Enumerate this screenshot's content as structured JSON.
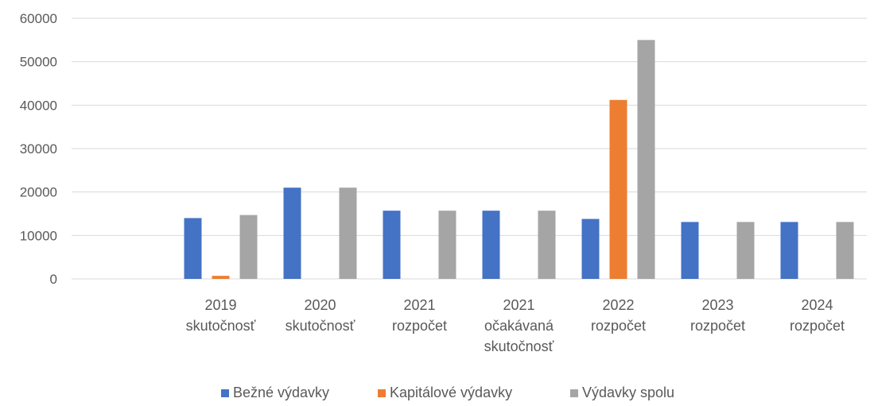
{
  "chart_data": {
    "type": "bar",
    "title": "",
    "xlabel": "",
    "ylabel": "",
    "ylim": [
      0,
      60000
    ],
    "yticks": [
      0,
      10000,
      20000,
      30000,
      40000,
      50000,
      60000
    ],
    "ytick_labels": [
      "0",
      "10000",
      "20000",
      "30000",
      "40000",
      "50000",
      "60000"
    ],
    "grid": true,
    "legend_position": "bottom",
    "categories": [
      [
        "",
        ""
      ],
      [
        "2019",
        "skutočnosť"
      ],
      [
        "2020",
        "skutočnosť"
      ],
      [
        "2021",
        "rozpočet"
      ],
      [
        "2021",
        "očakávaná",
        "skutočnosť"
      ],
      [
        "2022",
        "rozpočet"
      ],
      [
        "2023",
        "rozpočet"
      ],
      [
        "2024",
        "rozpočet"
      ]
    ],
    "series": [
      {
        "name": "Bežné výdavky",
        "color": "#4472c4",
        "values": [
          0,
          14000,
          21000,
          15700,
          15700,
          13800,
          13100,
          13100
        ]
      },
      {
        "name": "Kapitálové výdavky",
        "color": "#ed7d31",
        "values": [
          0,
          700,
          0,
          0,
          0,
          41200,
          0,
          0
        ]
      },
      {
        "name": "Výdavky spolu",
        "color": "#a5a5a5",
        "values": [
          0,
          14700,
          21000,
          15700,
          15700,
          55000,
          13100,
          13100
        ]
      }
    ]
  }
}
